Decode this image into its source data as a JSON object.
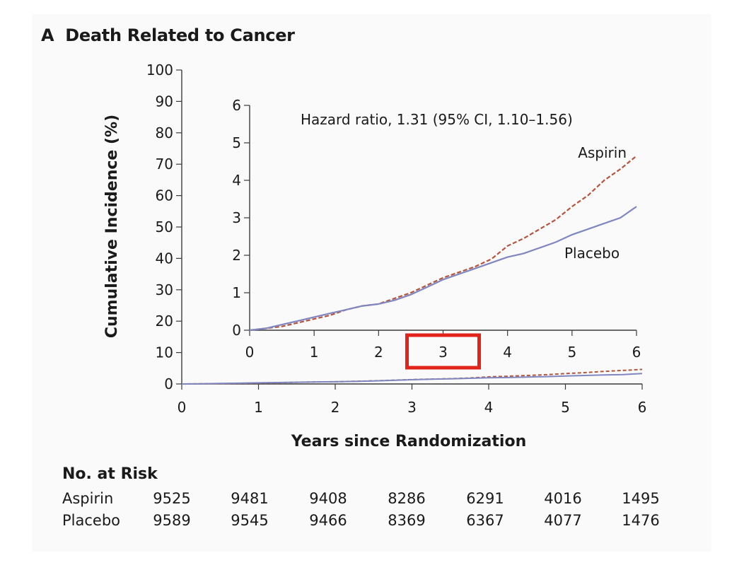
{
  "figure": {
    "letter": "A",
    "title": "Death Related to Cancer"
  },
  "chart_data": [
    {
      "id": "main",
      "type": "line",
      "xlabel": "Years since Randomization",
      "ylabel": "Cumulative Incidence (%)",
      "xlim": [
        0,
        6
      ],
      "ylim": [
        0,
        100
      ],
      "xticks": [
        0,
        1,
        2,
        3,
        4,
        5,
        6
      ],
      "yticks": [
        0,
        10,
        20,
        30,
        40,
        50,
        60,
        70,
        80,
        90,
        100
      ],
      "series": [
        {
          "name": "Aspirin",
          "color": "#b5553d",
          "style": "dashed",
          "x": [
            0,
            0.25,
            0.5,
            0.75,
            1,
            1.25,
            1.5,
            1.75,
            2,
            2.25,
            2.5,
            2.75,
            3,
            3.25,
            3.5,
            3.75,
            4,
            4.25,
            4.5,
            4.75,
            5,
            5.25,
            5.5,
            5.75,
            6
          ],
          "y": [
            0,
            0.05,
            0.1,
            0.2,
            0.3,
            0.4,
            0.55,
            0.65,
            0.7,
            0.85,
            1.0,
            1.2,
            1.4,
            1.55,
            1.7,
            1.9,
            2.25,
            2.45,
            2.7,
            2.95,
            3.3,
            3.6,
            4.0,
            4.3,
            4.65
          ]
        },
        {
          "name": "Placebo",
          "color": "#7f86c0",
          "style": "solid",
          "x": [
            0,
            0.25,
            0.5,
            0.75,
            1,
            1.25,
            1.5,
            1.75,
            2,
            2.25,
            2.5,
            2.75,
            3,
            3.25,
            3.5,
            3.75,
            4,
            4.25,
            4.5,
            4.75,
            5,
            5.25,
            5.5,
            5.75,
            6
          ],
          "y": [
            0,
            0.05,
            0.15,
            0.25,
            0.35,
            0.45,
            0.55,
            0.65,
            0.7,
            0.8,
            0.95,
            1.15,
            1.35,
            1.5,
            1.65,
            1.8,
            1.95,
            2.05,
            2.2,
            2.35,
            2.55,
            2.7,
            2.85,
            3.0,
            3.3
          ]
        }
      ]
    },
    {
      "id": "inset",
      "type": "line",
      "xlim": [
        0,
        6
      ],
      "ylim": [
        0,
        6
      ],
      "xticks": [
        0,
        1,
        2,
        3,
        4,
        5,
        6
      ],
      "yticks": [
        0,
        1,
        2,
        3,
        4,
        5,
        6
      ],
      "annotation": "Hazard ratio, 1.31 (95% CI, 1.10–1.56)",
      "series_labels": [
        "Aspirin",
        "Placebo"
      ],
      "highlight": {
        "x": 3,
        "label": "3",
        "color": "#e2231a"
      }
    }
  ],
  "risk_table": {
    "title": "No. at Risk",
    "rows": [
      {
        "label": "Aspirin",
        "values": [
          "9525",
          "9481",
          "9408",
          "8286",
          "6291",
          "4016",
          "1495"
        ]
      },
      {
        "label": "Placebo",
        "values": [
          "9589",
          "9545",
          "9466",
          "8369",
          "6367",
          "4077",
          "1476"
        ]
      }
    ]
  }
}
